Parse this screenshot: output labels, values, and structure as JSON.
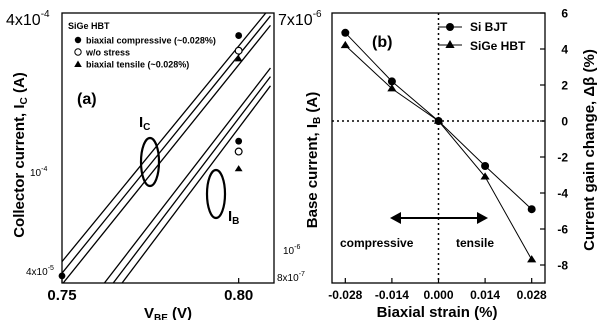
{
  "chart_data": [
    {
      "panel": "(a)",
      "type": "line",
      "subtitle": "SiGe HBT",
      "xlabel": "V",
      "xlabel_sub": "BE",
      "xlabel_unit": " (V)",
      "xlim": [
        0.75,
        0.81
      ],
      "xticks": [
        {
          "v": 0.75,
          "label": "0.75"
        },
        {
          "v": 0.8,
          "label": "0.80"
        }
      ],
      "ylabel_left": "Collector current, I",
      "ylabel_left_sub": "C",
      "ylabel_left_unit": " (A)",
      "ylim_left": [
        4e-05,
        0.0004
      ],
      "ylabel_right": "Base current, I",
      "ylabel_right_sub": "B",
      "ylabel_right_unit": " (A)",
      "ylim_right": [
        8e-07,
        7e-06
      ],
      "left_ticks": {
        "top_base": "4x10",
        "top_exp": "-4",
        "mid": "10",
        "mid_exp": "-4",
        "bottom": "4x10",
        "bottom_exp": "-5"
      },
      "right_ticks": {
        "top_base": "7x10",
        "top_exp": "-6",
        "mid": "10",
        "mid_exp": "-6",
        "bottom": "8x10",
        "bottom_exp": "-7"
      },
      "annotations": [
        {
          "text": "I",
          "sub": "C"
        },
        {
          "text": "I",
          "sub": "B"
        }
      ],
      "series": [
        {
          "name": "biaxial compressive (~0.028%)",
          "marker": "filled-circle",
          "ic_line": [
            [
              0.75,
              4.8e-05
            ],
            [
              0.809,
              0.00042
            ]
          ],
          "ic_point": [
            0.8,
            0.00033
          ],
          "ib_line": [
            [
              0.762,
              8e-07
            ],
            [
              0.809,
              4.5e-06
            ]
          ],
          "ib_point": [
            0.8,
            2.5e-06
          ]
        },
        {
          "name": "w/o stress",
          "marker": "open-circle",
          "ic_line": [
            [
              0.75,
              4.35e-05
            ],
            [
              0.809,
              0.00039
            ]
          ],
          "ic_point": [
            0.8,
            0.00029
          ],
          "ib_line": [
            [
              0.7645,
              8e-07
            ],
            [
              0.809,
              4.2e-06
            ]
          ],
          "ib_point": [
            0.8,
            2.3e-06
          ]
        },
        {
          "name": "biaxial tensile (~0.028%)",
          "marker": "filled-triangle",
          "ic_line": [
            [
              0.75,
              3.95e-05
            ],
            [
              0.809,
              0.00036
            ]
          ],
          "ic_point": [
            0.8,
            0.00027
          ],
          "ib_line": [
            [
              0.767,
              8e-07
            ],
            [
              0.809,
              3.9e-06
            ]
          ],
          "ib_point": [
            0.8,
            2e-06
          ]
        }
      ]
    },
    {
      "panel": "(b)",
      "type": "line",
      "xlabel": "Biaxial strain (%)",
      "ylabel": "Current gain change, Δβ (%)",
      "xlim": [
        -0.032,
        0.032
      ],
      "ylim": [
        -9,
        6
      ],
      "x": [
        -0.028,
        -0.014,
        0.0,
        0.014,
        0.028
      ],
      "xtick_labels": [
        "-0.028",
        "-0.014",
        "0.000",
        "0.014",
        "0.028"
      ],
      "yticks": [
        6,
        4,
        2,
        0,
        -2,
        -4,
        -6,
        -8
      ],
      "series": [
        {
          "name": "Si BJT",
          "marker": "filled-circle",
          "values": [
            4.9,
            2.2,
            0.0,
            -2.5,
            -4.9
          ]
        },
        {
          "name": "SiGe HBT",
          "marker": "filled-triangle",
          "values": [
            4.2,
            1.8,
            0.0,
            -3.1,
            -7.7
          ]
        }
      ],
      "annotations": [
        "compressive",
        "tensile"
      ]
    }
  ]
}
